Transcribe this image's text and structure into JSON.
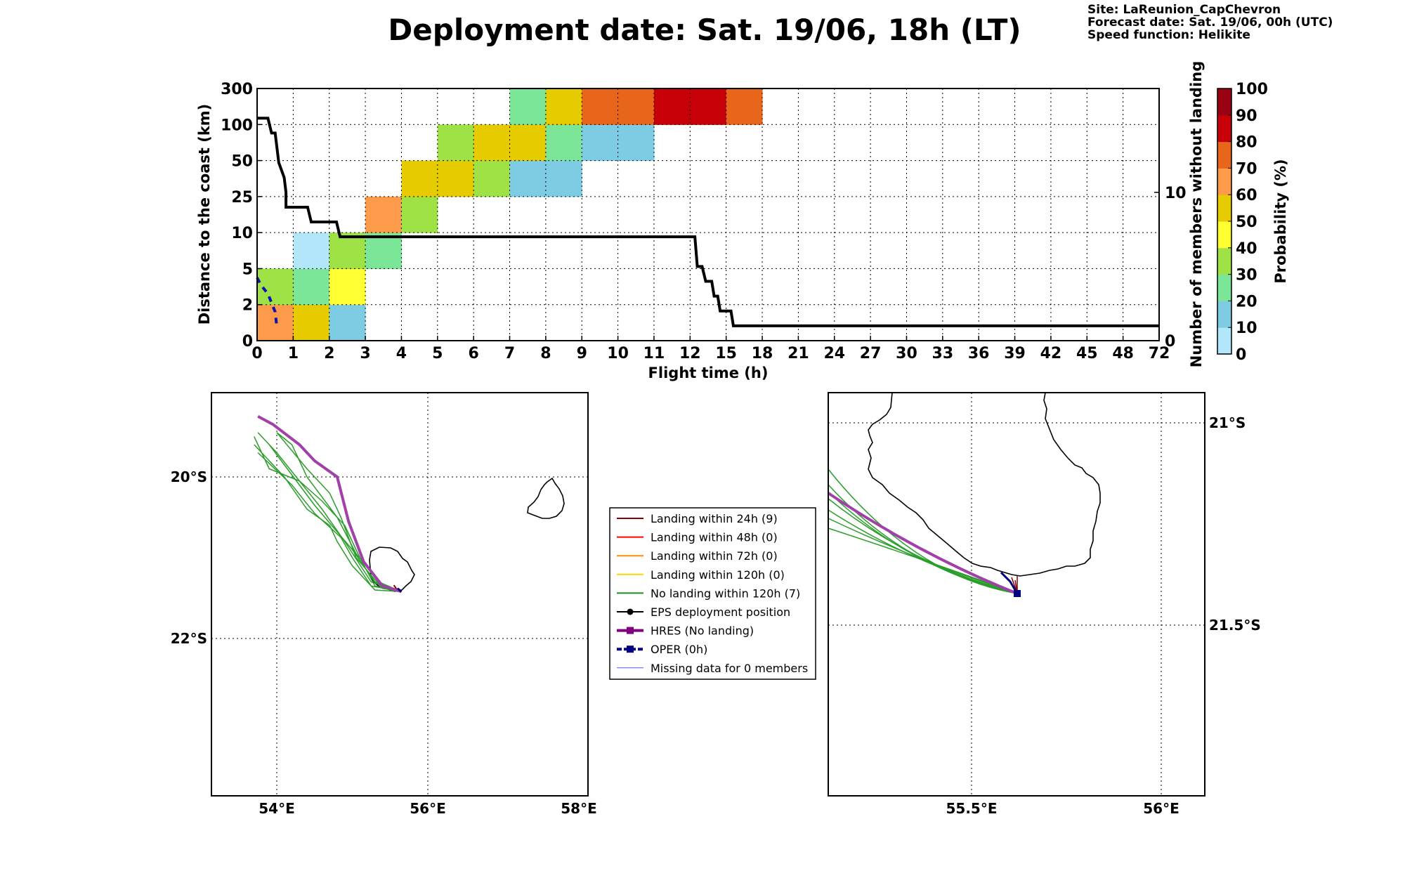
{
  "header": {
    "title": "Deployment date: Sat. 19/06, 18h (LT)",
    "site": "Site: LaReunion_CapChevron",
    "forecast": "Forecast date: Sat. 19/06, 00h (UTC)",
    "speed": "Speed function: Helikite"
  },
  "chart_data": [
    {
      "type": "heatmap",
      "xlabel": "Flight time (h)",
      "ylabel": "Distance to the coast (km)",
      "y2label": "Number of members without landing",
      "x_ticks": [
        "0",
        "1",
        "2",
        "3",
        "4",
        "5",
        "6",
        "7",
        "8",
        "9",
        "10",
        "11",
        "12",
        "15",
        "18",
        "21",
        "24",
        "27",
        "30",
        "33",
        "36",
        "39",
        "42",
        "45",
        "48",
        "72"
      ],
      "y_ticks": [
        "0",
        "2",
        "5",
        "10",
        "25",
        "50",
        "100",
        "300"
      ],
      "y2_ticks": [
        "0",
        "10"
      ],
      "y2lim": [
        0,
        17
      ],
      "grid": true,
      "cells": [
        {
          "x": 0,
          "y": 0,
          "p": 65
        },
        {
          "x": 1,
          "y": 0,
          "p": 55
        },
        {
          "x": 2,
          "y": 0,
          "p": 15
        },
        {
          "x": 0,
          "y": 1,
          "p": 35
        },
        {
          "x": 1,
          "y": 1,
          "p": 25
        },
        {
          "x": 2,
          "y": 1,
          "p": 45
        },
        {
          "x": 1,
          "y": 2,
          "p": 5
        },
        {
          "x": 2,
          "y": 2,
          "p": 35
        },
        {
          "x": 3,
          "y": 2,
          "p": 25
        },
        {
          "x": 3,
          "y": 3,
          "p": 65
        },
        {
          "x": 4,
          "y": 3,
          "p": 35
        },
        {
          "x": 4,
          "y": 4,
          "p": 55
        },
        {
          "x": 5,
          "y": 4,
          "p": 55
        },
        {
          "x": 6,
          "y": 4,
          "p": 35
        },
        {
          "x": 7,
          "y": 4,
          "p": 15
        },
        {
          "x": 8,
          "y": 4,
          "p": 15
        },
        {
          "x": 5,
          "y": 5,
          "p": 35
        },
        {
          "x": 6,
          "y": 5,
          "p": 55
        },
        {
          "x": 7,
          "y": 5,
          "p": 55
        },
        {
          "x": 8,
          "y": 5,
          "p": 25
        },
        {
          "x": 9,
          "y": 5,
          "p": 15
        },
        {
          "x": 10,
          "y": 5,
          "p": 15
        },
        {
          "x": 7,
          "y": 6,
          "p": 25
        },
        {
          "x": 8,
          "y": 6,
          "p": 55
        },
        {
          "x": 9,
          "y": 6,
          "p": 75
        },
        {
          "x": 10,
          "y": 6,
          "p": 75
        },
        {
          "x": 11,
          "y": 6,
          "p": 85
        },
        {
          "x": 12,
          "y": 6,
          "p": 85
        },
        {
          "x": 13,
          "y": 6,
          "p": 75
        }
      ],
      "members_without_landing": [
        [
          0,
          15
        ],
        [
          0.3,
          15
        ],
        [
          0.4,
          14
        ],
        [
          0.5,
          14
        ],
        [
          0.6,
          12
        ],
        [
          0.75,
          11
        ],
        [
          0.8,
          10
        ],
        [
          0.8,
          9
        ],
        [
          1.4,
          9
        ],
        [
          1.5,
          8
        ],
        [
          2.2,
          8
        ],
        [
          2.3,
          7
        ],
        [
          12.4,
          7
        ],
        [
          12.5,
          6
        ],
        [
          12.6,
          5
        ],
        [
          13.0,
          5
        ],
        [
          13.3,
          4
        ],
        [
          13.8,
          4
        ],
        [
          14.0,
          3
        ],
        [
          14.3,
          3
        ],
        [
          14.5,
          2
        ],
        [
          15.4,
          2
        ],
        [
          15.6,
          1
        ],
        [
          15.8,
          1
        ],
        [
          72,
          1
        ]
      ],
      "hres_distance_index": [
        [
          0,
          1.75
        ],
        [
          0.1,
          1.55
        ],
        [
          0.3,
          1.3
        ],
        [
          0.5,
          0.8
        ],
        [
          0.55,
          0.35
        ]
      ],
      "colorbar": {
        "label": "Probability (%)",
        "ticks": [
          "0",
          "10",
          "20",
          "30",
          "40",
          "50",
          "60",
          "70",
          "80",
          "90",
          "100"
        ],
        "colors": [
          "#b2e6fb",
          "#7ecce3",
          "#7be598",
          "#9ee246",
          "#ffff33",
          "#e6cb00",
          "#fd9b4b",
          "#e8661c",
          "#c60006",
          "#9a0214"
        ]
      }
    },
    {
      "type": "map",
      "lon_ticks": [
        "54°E",
        "56°E",
        "58°E"
      ],
      "lat_ticks": [
        "20°S",
        "22°S"
      ],
      "trajectories": {
        "eps_no_landing": [
          [
            [
              55.65,
              -21.42
            ],
            [
              55.3,
              -21.3
            ],
            [
              55.0,
              -20.9
            ],
            [
              54.5,
              -20.35
            ],
            [
              54.1,
              -19.85
            ],
            [
              53.9,
              -19.6
            ]
          ],
          [
            [
              55.65,
              -21.42
            ],
            [
              55.25,
              -21.3
            ],
            [
              54.9,
              -20.8
            ],
            [
              54.6,
              -20.4
            ],
            [
              54.0,
              -19.7
            ],
            [
              53.75,
              -19.45
            ]
          ],
          [
            [
              55.65,
              -21.42
            ],
            [
              55.35,
              -21.3
            ],
            [
              55.05,
              -20.95
            ],
            [
              54.8,
              -20.5
            ],
            [
              54.4,
              -20.0
            ],
            [
              54.2,
              -19.6
            ],
            [
              54.0,
              -19.45
            ]
          ],
          [
            [
              55.65,
              -21.42
            ],
            [
              55.3,
              -21.35
            ],
            [
              55.1,
              -21.0
            ],
            [
              54.9,
              -20.6
            ],
            [
              54.6,
              -20.3
            ],
            [
              54.3,
              -20.05
            ],
            [
              53.9,
              -19.9
            ],
            [
              53.7,
              -19.5
            ]
          ],
          [
            [
              55.65,
              -21.42
            ],
            [
              55.25,
              -21.35
            ],
            [
              55.0,
              -21.0
            ],
            [
              54.85,
              -20.75
            ],
            [
              54.5,
              -20.45
            ],
            [
              54.2,
              -20.1
            ],
            [
              53.75,
              -19.7
            ]
          ],
          [
            [
              55.65,
              -21.42
            ],
            [
              55.3,
              -21.4
            ],
            [
              55.0,
              -21.1
            ],
            [
              54.8,
              -20.8
            ],
            [
              54.7,
              -20.6
            ],
            [
              54.4,
              -20.4
            ],
            [
              54.1,
              -20.0
            ],
            [
              53.7,
              -19.6
            ]
          ],
          [
            [
              55.65,
              -21.42
            ],
            [
              55.4,
              -21.38
            ],
            [
              55.05,
              -21.0
            ],
            [
              54.85,
              -20.5
            ],
            [
              54.7,
              -20.2
            ],
            [
              54.4,
              -19.9
            ],
            [
              54.0,
              -19.45
            ]
          ]
        ],
        "eps_landing_24h": [
          [
            55.65,
            -21.42
          ],
          [
            55.58,
            -21.38
          ],
          [
            55.55,
            -21.34
          ]
        ],
        "hres": [
          [
            55.65,
            -21.42
          ],
          [
            55.4,
            -21.35
          ],
          [
            55.15,
            -21.05
          ],
          [
            54.95,
            -20.55
          ],
          [
            54.8,
            -20.0
          ],
          [
            54.5,
            -19.8
          ],
          [
            54.3,
            -19.6
          ],
          [
            53.95,
            -19.35
          ],
          [
            53.75,
            -19.25
          ]
        ],
        "oper": [
          [
            55.65,
            -21.42
          ],
          [
            55.6,
            -21.38
          ]
        ]
      }
    },
    {
      "type": "map",
      "lon_ticks": [
        "55.5°E",
        "56°E"
      ],
      "lat_ticks": [
        "21°S",
        "21.5°S"
      ]
    }
  ],
  "legend": [
    {
      "label": "Landing within 24h (9)",
      "color": "#8b0000",
      "style": "line"
    },
    {
      "label": "Landing within 48h (0)",
      "color": "#ff0000",
      "style": "line"
    },
    {
      "label": "Landing within 72h (0)",
      "color": "#ff8c00",
      "style": "line"
    },
    {
      "label": "Landing within 120h (0)",
      "color": "#ffd700",
      "style": "line"
    },
    {
      "label": "No landing within 120h (7)",
      "color": "#228b22",
      "style": "line"
    },
    {
      "label": "EPS deployment position",
      "color": "#000000",
      "style": "dot"
    },
    {
      "label": "HRES (No landing)",
      "color": "#800080",
      "style": "square"
    },
    {
      "label": "OPER (0h)",
      "color": "#000080",
      "style": "square-dash"
    },
    {
      "label": "Missing data for 0 members",
      "color": "#5555ff",
      "style": "thin"
    }
  ]
}
